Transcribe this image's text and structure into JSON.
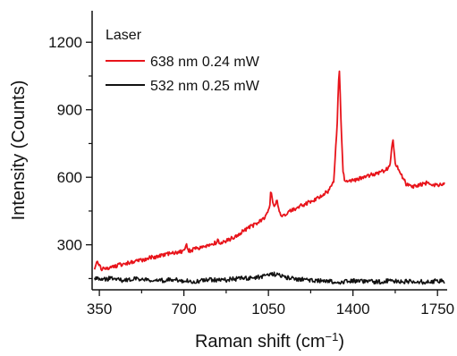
{
  "chart_data": {
    "type": "line",
    "title": "",
    "xlabel": "Raman shift (cm",
    "xlabel_sup": "−1",
    "xlabel_close": ")",
    "ylabel": "Intensity (Counts)",
    "xlim": [
      320,
      1790
    ],
    "ylim": [
      100,
      1340
    ],
    "xticks": [
      350,
      700,
      1050,
      1400,
      1750
    ],
    "yticks": [
      300,
      600,
      900,
      1200
    ],
    "grid": false,
    "legend": {
      "title": "Laser",
      "placement": "top-left"
    },
    "series": [
      {
        "name": "638 nm 0.24 mW",
        "color": "#e8141b",
        "x": [
          330,
          340,
          350,
          360,
          380,
          400,
          450,
          500,
          550,
          600,
          650,
          700,
          710,
          720,
          750,
          800,
          830,
          840,
          850,
          900,
          950,
          1000,
          1040,
          1055,
          1060,
          1068,
          1075,
          1085,
          1090,
          1098,
          1110,
          1150,
          1200,
          1250,
          1300,
          1320,
          1335,
          1343,
          1350,
          1358,
          1365,
          1380,
          1400,
          1450,
          1500,
          1540,
          1555,
          1565,
          1575,
          1590,
          1620,
          1650,
          1700,
          1750,
          1780
        ],
        "y": [
          195,
          235,
          210,
          190,
          195,
          200,
          215,
          225,
          240,
          250,
          262,
          272,
          300,
          272,
          282,
          298,
          308,
          322,
          305,
          330,
          365,
          395,
          425,
          470,
          545,
          480,
          460,
          505,
          470,
          440,
          432,
          455,
          480,
          505,
          540,
          580,
          840,
          1105,
          860,
          640,
          590,
          580,
          585,
          605,
          615,
          635,
          665,
          780,
          660,
          630,
          570,
          560,
          575,
          565,
          575
        ]
      },
      {
        "name": "532 nm 0.25 mW",
        "color": "#111111",
        "x": [
          330,
          360,
          400,
          450,
          500,
          550,
          600,
          650,
          700,
          750,
          800,
          850,
          900,
          950,
          1000,
          1050,
          1070,
          1100,
          1150,
          1200,
          1250,
          1300,
          1350,
          1400,
          1450,
          1500,
          1550,
          1600,
          1650,
          1700,
          1750,
          1780
        ],
        "y": [
          150,
          145,
          152,
          140,
          148,
          145,
          140,
          146,
          140,
          138,
          145,
          141,
          148,
          150,
          155,
          162,
          172,
          160,
          150,
          145,
          140,
          138,
          135,
          140,
          137,
          134,
          140,
          136,
          139,
          134,
          140,
          137
        ]
      }
    ]
  }
}
